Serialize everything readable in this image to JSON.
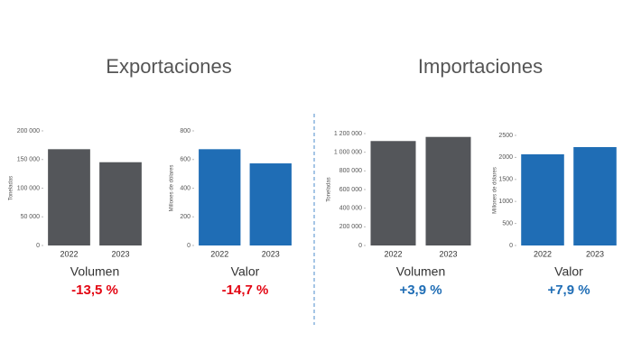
{
  "headings": [
    "Exportaciones",
    "Importaciones"
  ],
  "chart_data": [
    {
      "type": "bar",
      "ylabel": "Toneladas",
      "categories": [
        "2022",
        "2023"
      ],
      "values": [
        168000,
        145300
      ],
      "color": "#54565a",
      "ylim": [
        0,
        200000
      ],
      "yticks": [
        0,
        {
          "value": 50000,
          "label": "50 000"
        },
        {
          "value": 100000,
          "label": "100 000"
        },
        {
          "value": 150000,
          "label": "150 000"
        },
        {
          "value": 200000,
          "label": "200 000"
        }
      ],
      "caption": "Volumen",
      "annotation": "-13,5 %",
      "annotation_color": "#e30613"
    },
    {
      "type": "bar",
      "ylabel": "Millones de dólares",
      "categories": [
        "2022",
        "2023"
      ],
      "values": [
        672,
        573
      ],
      "color": "#1f6db5",
      "ylim": [
        0,
        800
      ],
      "yticks": [
        0,
        200,
        400,
        600,
        800
      ],
      "caption": "Valor",
      "annotation": "-14,7 %",
      "annotation_color": "#e30613"
    },
    {
      "type": "bar",
      "ylabel": "Toneladas",
      "categories": [
        "2022",
        "2023"
      ],
      "values": [
        1120000,
        1164000
      ],
      "color": "#54565a",
      "ylim": [
        0,
        1200000
      ],
      "yticks": [
        0,
        {
          "value": 200000,
          "label": "200 000"
        },
        {
          "value": 400000,
          "label": "400 000"
        },
        {
          "value": 600000,
          "label": "600 000"
        },
        {
          "value": 800000,
          "label": "800 000"
        },
        {
          "value": 1000000,
          "label": "1 000 000"
        },
        {
          "value": 1200000,
          "label": "1 200 000"
        }
      ],
      "caption": "Volumen",
      "annotation": "+3,9 %",
      "annotation_color": "#1f6db5"
    },
    {
      "type": "bar",
      "ylabel": "Millones de dólares",
      "categories": [
        "2022",
        "2023"
      ],
      "values": [
        2070,
        2234
      ],
      "color": "#1f6db5",
      "ylim": [
        0,
        2500
      ],
      "yticks": [
        0,
        500,
        1000,
        1500,
        2000,
        2500
      ],
      "caption": "Valor",
      "annotation": "+7,9 %",
      "annotation_color": "#1f6db5"
    }
  ]
}
